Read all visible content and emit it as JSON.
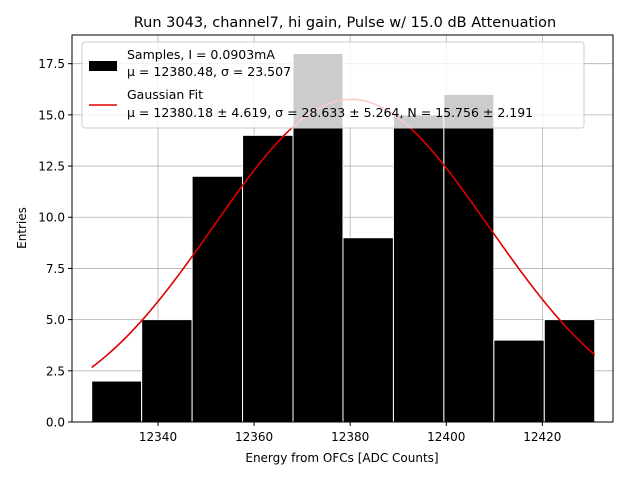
{
  "chart_data": {
    "type": "bar",
    "title": "Run 3043, channel7, hi gain, Pulse w/ 15.0 dB Attenuation",
    "xlabel": "Energy from OFCs [ADC Counts]",
    "ylabel": "Entries",
    "xlim": [
      12322.1,
      12434.7
    ],
    "ylim": [
      0,
      18.9
    ],
    "xticks": [
      12340,
      12360,
      12380,
      12400,
      12420
    ],
    "yticks": [
      0.0,
      2.5,
      5.0,
      7.5,
      10.0,
      12.5,
      15.0,
      17.5
    ],
    "grid": true,
    "legend_position": "top",
    "histogram": {
      "name": "Samples, I = 0.0903mA",
      "stats_line": "μ = 12380.48, σ = 23.507",
      "color": "#000000",
      "bin_edges": [
        12326.2,
        12336.6,
        12347.1,
        12357.6,
        12368.1,
        12378.5,
        12389.0,
        12399.5,
        12409.9,
        12420.4,
        12430.9
      ],
      "counts": [
        2,
        5,
        12,
        14,
        18,
        9,
        15,
        16,
        4,
        5
      ]
    },
    "fit": {
      "name": "Gaussian Fit",
      "stats_line": "μ = 12380.18 ± 4.619, σ = 28.633 ± 5.264, N = 15.756 ± 2.191",
      "color": "#e00000",
      "mu": 12380.18,
      "sigma": 28.633,
      "amplitude": 15.756,
      "x_range": [
        12326.2,
        12430.9
      ]
    }
  }
}
